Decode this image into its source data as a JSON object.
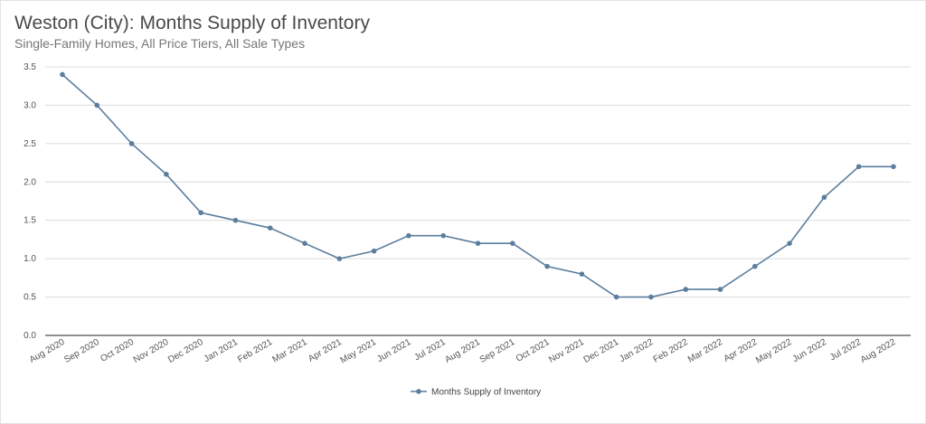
{
  "chart_data": {
    "type": "line",
    "title": "Weston (City): Months Supply of Inventory",
    "subtitle": "Single-Family Homes, All Price Tiers, All Sale Types",
    "xlabel": "",
    "ylabel": "",
    "ylim": [
      0,
      3.5
    ],
    "yticks": [
      "0.0",
      "0.5",
      "1.0",
      "1.5",
      "2.0",
      "2.5",
      "3.0",
      "3.5"
    ],
    "grid": true,
    "legend_position": "bottom",
    "line_color": "#5b7e9e",
    "categories": [
      "Aug 2020",
      "Sep 2020",
      "Oct 2020",
      "Nov 2020",
      "Dec 2020",
      "Jan 2021",
      "Feb 2021",
      "Mar 2021",
      "Apr 2021",
      "May 2021",
      "Jun 2021",
      "Jul 2021",
      "Aug 2021",
      "Sep 2021",
      "Oct 2021",
      "Nov 2021",
      "Dec 2021",
      "Jan 2022",
      "Feb 2022",
      "Mar 2022",
      "Apr 2022",
      "May 2022",
      "Jun 2022",
      "Jul 2022",
      "Aug 2022"
    ],
    "series": [
      {
        "name": "Months Supply of Inventory",
        "values": [
          3.4,
          3.0,
          2.5,
          2.1,
          1.6,
          1.5,
          1.4,
          1.2,
          1.0,
          1.1,
          1.3,
          1.3,
          1.2,
          1.2,
          0.9,
          0.8,
          0.5,
          0.5,
          0.6,
          0.6,
          0.9,
          1.2,
          1.8,
          2.2,
          2.2
        ]
      }
    ]
  }
}
